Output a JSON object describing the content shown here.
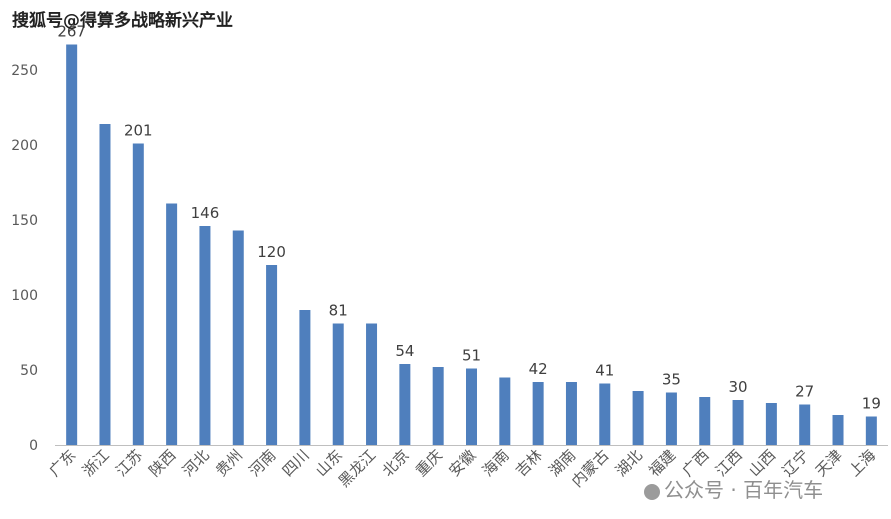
{
  "watermark_top": "搜狐号@得算多战略新兴产业",
  "watermark_bottom": "公众号 · 百年汽车",
  "colors": {
    "bar": "#4f7fbd",
    "axis": "#bfbfbf",
    "text": "#595959"
  },
  "chart_data": {
    "type": "bar",
    "categories": [
      "广东",
      "浙江",
      "江苏",
      "陕西",
      "河北",
      "贵州",
      "河南",
      "四川",
      "山东",
      "黑龙江",
      "北京",
      "重庆",
      "安徽",
      "海南",
      "吉林",
      "湖南",
      "内蒙古",
      "湖北",
      "福建",
      "广西",
      "江西",
      "山西",
      "辽宁",
      "天津",
      "上海"
    ],
    "values": [
      267,
      214,
      201,
      161,
      146,
      143,
      120,
      90,
      81,
      81,
      54,
      52,
      51,
      45,
      42,
      42,
      41,
      36,
      35,
      32,
      30,
      28,
      27,
      20,
      19
    ],
    "data_labels": [
      "267",
      "",
      "201",
      "",
      "146",
      "",
      "120",
      "",
      "81",
      "",
      "54",
      "",
      "51",
      "",
      "42",
      "",
      "41",
      "",
      "35",
      "",
      "30",
      "",
      "27",
      "",
      "19"
    ],
    "yticks": [
      "0",
      "50",
      "100",
      "150",
      "200",
      "250"
    ],
    "ylim": [
      0,
      300
    ],
    "title": "",
    "xlabel": "",
    "ylabel": "",
    "grid": false
  }
}
